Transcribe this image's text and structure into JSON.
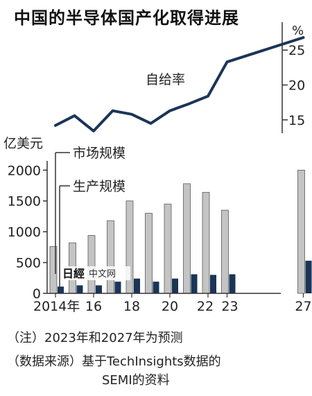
{
  "title": "中国的半导体国产化取得进展",
  "watermark": {
    "logo_text": "日經",
    "label": "中文网"
  },
  "notes": {
    "note1": "（注）2023年和2027年为预测",
    "note2a": "（数据来源）基于TechInsights数据的",
    "note2b": "SEMI的资料"
  },
  "colors": {
    "market_bar": "#c4c4c4",
    "market_bar_stroke": "#5a5a5a",
    "production_bar": "#1b3557",
    "line": "#1b3557",
    "axis": "#333333"
  },
  "chart_data": [
    {
      "type": "line",
      "title": "",
      "ylabel": "%",
      "ylim": [
        12,
        29
      ],
      "yticks": [
        15,
        20,
        25
      ],
      "grid": false,
      "series": [
        {
          "name": "自给率",
          "x": [
            2014,
            2015,
            2016,
            2017,
            2018,
            2019,
            2020,
            2021,
            2022,
            2023,
            2027
          ],
          "values": [
            14.2,
            15.6,
            13.4,
            16.3,
            15.8,
            14.5,
            16.3,
            17.3,
            18.4,
            23.3,
            26.8
          ]
        }
      ]
    },
    {
      "type": "bar",
      "title": "",
      "ylabel": "亿美元",
      "ylim": [
        0,
        2150
      ],
      "yticks": [
        0,
        500,
        1000,
        1500,
        2000
      ],
      "xtick_labels": [
        "2014年",
        "16",
        "18",
        "20",
        "22",
        "23",
        "27"
      ],
      "categories": [
        2014,
        2015,
        2016,
        2017,
        2018,
        2019,
        2020,
        2021,
        2022,
        2023,
        2027
      ],
      "grid": false,
      "series": [
        {
          "name": "市场规模",
          "values": [
            760,
            820,
            940,
            1180,
            1500,
            1300,
            1450,
            1780,
            1640,
            1350,
            2000
          ]
        },
        {
          "name": "生产规模",
          "values": [
            110,
            130,
            130,
            190,
            240,
            190,
            240,
            310,
            300,
            310,
            530
          ]
        }
      ]
    }
  ]
}
